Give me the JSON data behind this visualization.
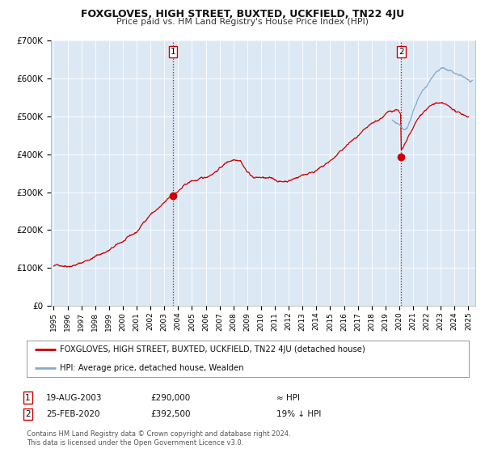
{
  "title": "FOXGLOVES, HIGH STREET, BUXTED, UCKFIELD, TN22 4JU",
  "subtitle": "Price paid vs. HM Land Registry's House Price Index (HPI)",
  "bg_color": "#dce9f5",
  "fig_bg_color": "#ffffff",
  "ylim": [
    0,
    700000
  ],
  "xlim_start": 1994.8,
  "xlim_end": 2025.5,
  "yticks": [
    0,
    100000,
    200000,
    300000,
    400000,
    500000,
    600000,
    700000
  ],
  "ytick_labels": [
    "£0",
    "£100K",
    "£200K",
    "£300K",
    "£400K",
    "£500K",
    "£600K",
    "£700K"
  ],
  "xticks": [
    1995,
    1996,
    1997,
    1998,
    1999,
    2000,
    2001,
    2002,
    2003,
    2004,
    2005,
    2006,
    2007,
    2008,
    2009,
    2010,
    2011,
    2012,
    2013,
    2014,
    2015,
    2016,
    2017,
    2018,
    2019,
    2020,
    2021,
    2022,
    2023,
    2024,
    2025
  ],
  "red_line_color": "#cc0000",
  "blue_line_color": "#88aacc",
  "marker1_date": 2003.633,
  "marker1_value": 290000,
  "marker2_date": 2020.142,
  "marker2_value": 392500,
  "vline1_date": 2003.633,
  "vline2_date": 2020.142,
  "legend_label_red": "FOXGLOVES, HIGH STREET, BUXTED, UCKFIELD, TN22 4JU (detached house)",
  "legend_label_blue": "HPI: Average price, detached house, Wealden",
  "table_row1": [
    "1",
    "19-AUG-2003",
    "£290,000",
    "≈ HPI"
  ],
  "table_row2": [
    "2",
    "25-FEB-2020",
    "£392,500",
    "19% ↓ HPI"
  ],
  "footer1": "Contains HM Land Registry data © Crown copyright and database right 2024.",
  "footer2": "This data is licensed under the Open Government Licence v3.0."
}
